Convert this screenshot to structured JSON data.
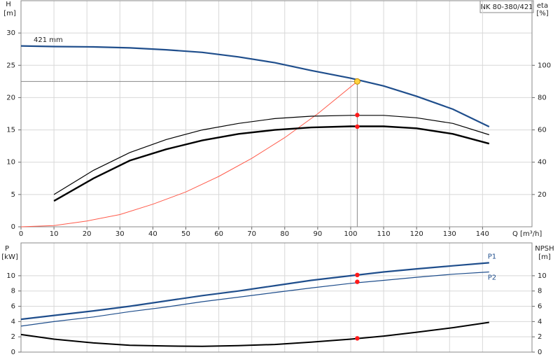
{
  "chart_data": [
    {
      "type": "line",
      "title": "NK 80-380/421",
      "ylabel": "H",
      "ylabel_unit": "[m]",
      "y2label": "eta",
      "y2label_unit": "[%]",
      "xlabel": "Q [m³/h]",
      "annotation": "421 mm",
      "xlim": [
        0,
        155
      ],
      "xticks": [
        0,
        10,
        20,
        30,
        40,
        50,
        60,
        70,
        80,
        90,
        100,
        110,
        120,
        130,
        140
      ],
      "ylim": [
        0,
        35
      ],
      "yticks": [
        0,
        5,
        10,
        15,
        20,
        25,
        30
      ],
      "y2lim": [
        0,
        140
      ],
      "y2ticks": [
        20,
        40,
        60,
        80,
        100
      ],
      "grid": true,
      "series": [
        {
          "color": "#1f4e8c",
          "width": 2.2,
          "x": [
            0,
            10,
            22,
            33,
            44,
            55,
            66,
            77,
            88,
            100,
            110,
            120,
            131,
            142
          ],
          "values": [
            28,
            27.9,
            27.85,
            27.7,
            27.4,
            27.0,
            26.3,
            25.4,
            24.2,
            23.0,
            21.8,
            20.2,
            18.2,
            15.5
          ]
        },
        {
          "color": "#ff5a4a",
          "width": 1,
          "x": [
            0,
            10,
            20,
            30,
            40,
            50,
            60,
            70,
            80,
            90,
            102
          ],
          "values": [
            0,
            0.2,
            0.9,
            1.9,
            3.5,
            5.4,
            7.8,
            10.6,
            13.8,
            17.5,
            22.5
          ]
        },
        {
          "color": "#000000",
          "width": 1.2,
          "axis": "y2",
          "x": [
            10,
            22,
            33,
            44,
            55,
            66,
            77,
            88,
            100,
            110,
            120,
            131,
            142
          ],
          "values": [
            20,
            35,
            46,
            54,
            60,
            64,
            67,
            68.5,
            69,
            69,
            67.5,
            64,
            57
          ]
        },
        {
          "color": "#000000",
          "width": 2.4,
          "axis": "y2",
          "x": [
            10,
            22,
            33,
            44,
            55,
            66,
            77,
            88,
            100,
            110,
            120,
            131,
            142
          ],
          "values": [
            16,
            30,
            41,
            48,
            53.5,
            57.5,
            60,
            61.5,
            62.2,
            62.2,
            61,
            57.5,
            51.5
          ]
        }
      ],
      "points": [
        {
          "x": 102,
          "y": 22.5,
          "color": "#ffd23f",
          "guides": true
        },
        {
          "x": 102,
          "y": 69.2,
          "axis": "y2",
          "color": "#ff1a1a"
        },
        {
          "x": 102,
          "y": 62,
          "axis": "y2",
          "color": "#ff1a1a"
        }
      ]
    },
    {
      "type": "line",
      "ylabel": "P",
      "ylabel_unit": "[kW]",
      "y2label": "NPSH",
      "y2label_unit": "[m]",
      "xlim": [
        0,
        155
      ],
      "xticks": [
        0,
        10,
        20,
        30,
        40,
        50,
        60,
        70,
        80,
        90,
        100,
        110,
        120,
        130,
        140
      ],
      "xtick_labels": false,
      "ylim": [
        0,
        14.3
      ],
      "yticks": [
        0,
        2,
        4,
        6,
        8,
        10
      ],
      "y2lim": [
        0,
        14.3
      ],
      "y2ticks": [
        0,
        2,
        4,
        6,
        8,
        10
      ],
      "grid": true,
      "series": [
        {
          "name": "P1",
          "color": "#1f4e8c",
          "width": 2.2,
          "x": [
            0,
            10,
            22,
            33,
            44,
            55,
            66,
            77,
            88,
            100,
            110,
            120,
            131,
            142
          ],
          "values": [
            4.3,
            4.8,
            5.4,
            6.0,
            6.7,
            7.4,
            8.0,
            8.7,
            9.4,
            10.0,
            10.5,
            10.9,
            11.3,
            11.7
          ]
        },
        {
          "name": "P2",
          "color": "#1f4e8c",
          "width": 1.2,
          "x": [
            0,
            10,
            22,
            33,
            44,
            55,
            66,
            77,
            88,
            100,
            110,
            120,
            131,
            142
          ],
          "values": [
            3.4,
            4.0,
            4.6,
            5.3,
            5.9,
            6.6,
            7.2,
            7.8,
            8.4,
            9.0,
            9.4,
            9.8,
            10.2,
            10.5
          ]
        },
        {
          "color": "#000000",
          "width": 2,
          "axis": "y2",
          "x": [
            0,
            10,
            22,
            33,
            44,
            55,
            66,
            77,
            88,
            100,
            110,
            120,
            131,
            142
          ],
          "values": [
            2.3,
            1.7,
            1.2,
            0.9,
            0.8,
            0.75,
            0.85,
            1.0,
            1.3,
            1.7,
            2.1,
            2.6,
            3.2,
            3.9
          ]
        }
      ],
      "points": [
        {
          "x": 102,
          "y": 10.1,
          "color": "#ff1a1a"
        },
        {
          "x": 102,
          "y": 9.2,
          "color": "#ff1a1a"
        },
        {
          "x": 102,
          "y": 1.8,
          "axis": "y2",
          "color": "#ff1a1a"
        }
      ]
    }
  ]
}
